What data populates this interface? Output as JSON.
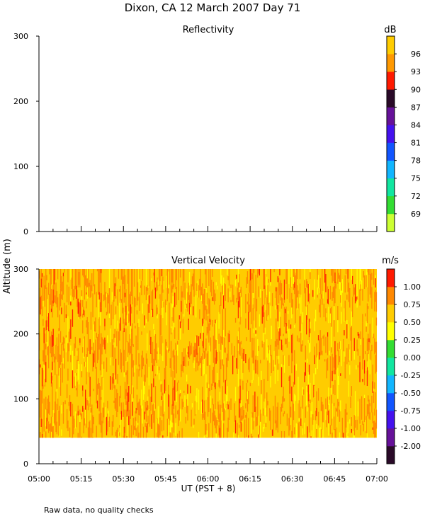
{
  "figure": {
    "title": "Dixon, CA 12 March 2007  Day  71",
    "y_axis_label": "Altitude (m)",
    "x_axis_label": "UT  (PST + 8)",
    "footer_note": "Raw data, no quality checks"
  },
  "chart_data": [
    {
      "type": "heatmap",
      "title": "Reflectivity",
      "ylabel": "Altitude (m)",
      "ylim": [
        0,
        300
      ],
      "yticks": [
        0,
        100,
        200,
        300
      ],
      "xlim": [
        "05:00",
        "07:00"
      ],
      "xticks": [
        "05:00",
        "05:15",
        "05:30",
        "05:45",
        "06:00",
        "06:15",
        "06:30",
        "06:45",
        "07:00"
      ],
      "data_present": false,
      "colorbar": {
        "unit": "dB",
        "labels": [
          "69",
          "72",
          "75",
          "78",
          "81",
          "84",
          "87",
          "90",
          "93",
          "96"
        ],
        "colors": [
          "#ccff33",
          "#33dd33",
          "#11e6a0",
          "#11b6ff",
          "#1155ff",
          "#4411ee",
          "#661199",
          "#2a0a28",
          "#ff1a00",
          "#ff9900",
          "#ffcc00"
        ]
      }
    },
    {
      "type": "heatmap",
      "title": "Vertical Velocity",
      "ylabel": "Altitude (m)",
      "ylim": [
        0,
        300
      ],
      "yticks": [
        0,
        100,
        200,
        300
      ],
      "data_altitude_range": [
        40,
        300
      ],
      "xlim": [
        "05:00",
        "07:00"
      ],
      "xticks": [
        "05:00",
        "05:15",
        "05:30",
        "05:45",
        "06:00",
        "06:15",
        "06:30",
        "06:45",
        "07:00"
      ],
      "xlabel": "UT  (PST + 8)",
      "dominant_values": [
        0.5,
        0.75,
        1.0
      ],
      "colorbar": {
        "unit": "m/s",
        "labels": [
          "-2.00",
          "-1.00",
          "-0.75",
          "-0.50",
          "-0.25",
          "0.00",
          "0.25",
          "0.50",
          "0.75",
          "1.00"
        ],
        "colors": [
          "#2a0a28",
          "#661199",
          "#4411ee",
          "#1155ff",
          "#11b6ff",
          "#11e6a0",
          "#33dd33",
          "#ffff00",
          "#ffcc00",
          "#ff8800",
          "#ff1a00"
        ]
      }
    }
  ]
}
